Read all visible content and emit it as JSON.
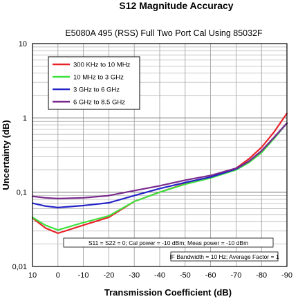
{
  "chart_data": {
    "type": "line",
    "title": "S12 Magnitude Accuracy",
    "subtitle": "E5080A 495 (RSS) Full Two Port Cal Using 85032F",
    "xlabel": "Transmission Coefficient (dB)",
    "ylabel": "Uncertainty (dB)",
    "x_ticks": [
      10,
      0,
      -10,
      -20,
      -30,
      -40,
      -50,
      -60,
      -70,
      -80,
      -90
    ],
    "x_tick_labels": [
      "10",
      "0",
      "-10",
      "-20",
      "-30",
      "-40",
      "-50",
      "-60",
      "-70",
      "-80",
      "-90"
    ],
    "xlim": [
      10,
      -90
    ],
    "y_scale": "log",
    "ylim": [
      0.01,
      10
    ],
    "y_ticks": [
      0.01,
      0.1,
      1,
      10
    ],
    "y_tick_labels": [
      "0,01",
      "0,1",
      "1",
      "10"
    ],
    "grid": true,
    "legend_position": "top-left",
    "series": [
      {
        "name": "300 KHz to 10 MHz",
        "color": "#e8232a",
        "x": [
          10,
          5,
          0,
          -10,
          -20,
          -30,
          -40,
          -50,
          -60,
          -70,
          -75,
          -80,
          -85,
          -90
        ],
        "y": [
          0.045,
          0.033,
          0.028,
          0.036,
          0.046,
          0.075,
          0.1,
          0.13,
          0.16,
          0.21,
          0.28,
          0.4,
          0.65,
          1.15
        ]
      },
      {
        "name": "10 MHz to 3 GHz",
        "color": "#3ee23e",
        "x": [
          10,
          5,
          0,
          -10,
          -20,
          -30,
          -40,
          -50,
          -60,
          -70,
          -75,
          -80,
          -85,
          -90
        ],
        "y": [
          0.046,
          0.036,
          0.031,
          0.039,
          0.048,
          0.075,
          0.1,
          0.128,
          0.155,
          0.2,
          0.25,
          0.34,
          0.53,
          0.85
        ]
      },
      {
        "name": "3 GHz to 6 GHz",
        "color": "#2323c8",
        "x": [
          10,
          5,
          0,
          -10,
          -20,
          -30,
          -40,
          -50,
          -60,
          -70,
          -75,
          -80,
          -85,
          -90
        ],
        "y": [
          0.071,
          0.065,
          0.062,
          0.066,
          0.072,
          0.09,
          0.112,
          0.135,
          0.16,
          0.205,
          0.26,
          0.36,
          0.55,
          0.85
        ]
      },
      {
        "name": "6 GHz to 8.5 GHz",
        "color": "#7a2a8e",
        "x": [
          10,
          5,
          0,
          -10,
          -20,
          -30,
          -40,
          -50,
          -60,
          -70,
          -75,
          -80,
          -85,
          -90
        ],
        "y": [
          0.088,
          0.084,
          0.082,
          0.084,
          0.09,
          0.105,
          0.122,
          0.145,
          0.168,
          0.21,
          0.26,
          0.36,
          0.55,
          0.85
        ]
      }
    ],
    "annotations": [
      "S11 = S22 = 0; Cal power = -10 dBm; Meas power = -10 dBm",
      "IF Bandwidth = 10 Hz; Average Factor = 1"
    ]
  }
}
